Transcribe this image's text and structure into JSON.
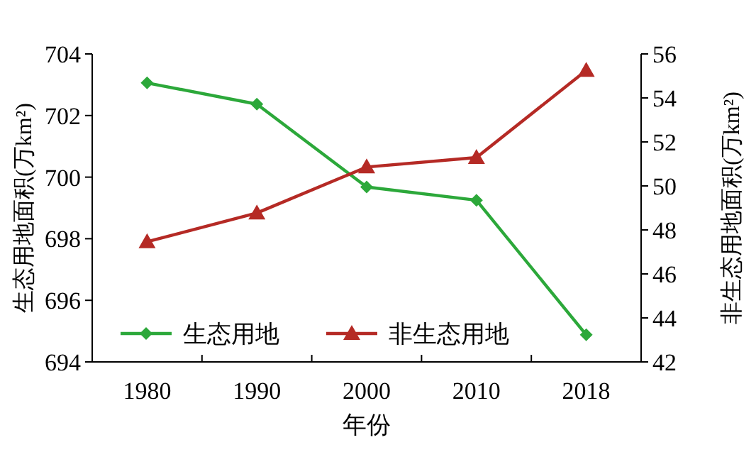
{
  "chart_data": {
    "type": "line",
    "xlabel": "年份",
    "ylabel": "生态用地面积(万km²)",
    "y2label": "非生态用地面积(万km²)",
    "categories": [
      "1980",
      "1990",
      "2000",
      "2010",
      "2018"
    ],
    "series": [
      {
        "name": "生态用地",
        "color": "#2ca83a",
        "marker": "diamond",
        "values": [
          703.06,
          702.37,
          699.68,
          699.25,
          694.88
        ]
      },
      {
        "name": "非生态用地",
        "color": "#b52a25",
        "marker": "triangle",
        "axis": "y2",
        "values": [
          47.46,
          48.77,
          50.86,
          51.29,
          55.25
        ]
      }
    ],
    "ylim": [
      694,
      704
    ],
    "yticks": [
      694,
      696,
      698,
      700,
      702,
      704
    ],
    "y2lim": [
      42,
      56
    ],
    "y2ticks": [
      42,
      44,
      46,
      48,
      50,
      52,
      54,
      56
    ],
    "legend": "bottom left",
    "grid": false,
    "line_style": "solid"
  }
}
